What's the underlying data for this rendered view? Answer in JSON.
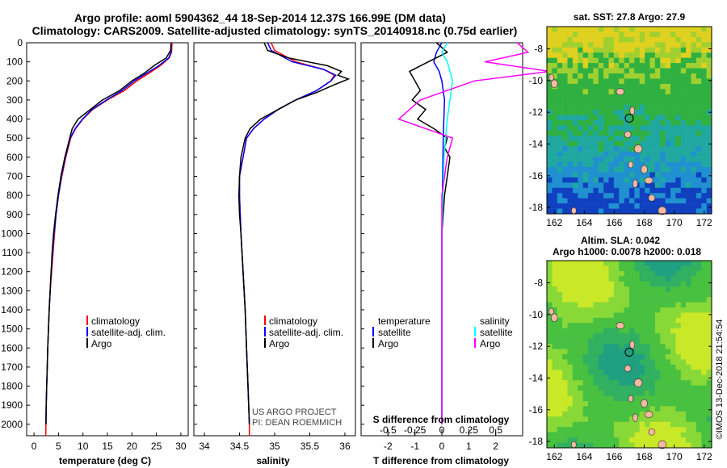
{
  "header": {
    "title_line1": "Argo profile: aoml 5904362_44 18-Sep-2014 12.37S 166.99E (DM data)",
    "title_line2": "Climatology: CARS2009. Satellite-adjusted climatology: synTS_20140918.nc (0.75d earlier)"
  },
  "colors": {
    "climatology": "#ff0000",
    "satellite": "#0000ff",
    "argo": "#000000",
    "satellite_salinity": "#00ffff",
    "argo_salinity": "#ff00ff",
    "land": "#f5b8a0"
  },
  "depth_axis": {
    "ticks": [
      "0",
      "100",
      "200",
      "300",
      "400",
      "500",
      "600",
      "700",
      "800",
      "900",
      "1000",
      "1100",
      "1200",
      "1300",
      "1400",
      "1500",
      "1600",
      "1700",
      "1800",
      "1900",
      "2000"
    ],
    "min": 0,
    "max": 2060
  },
  "chart_data": [
    {
      "type": "line",
      "xlabel": "temperature (deg C)",
      "xlim": [
        -1.5,
        31.5
      ],
      "xticks": [
        "0",
        "5",
        "10",
        "15",
        "20",
        "25",
        "30"
      ],
      "xtick_values": [
        0,
        5,
        10,
        15,
        20,
        25,
        30
      ],
      "legend": [
        "climatology",
        "satellite-adj. clim.",
        "Argo"
      ],
      "series": [
        {
          "name": "climatology",
          "color": "climatology",
          "points": [
            [
              28.2,
              0
            ],
            [
              28.1,
              50
            ],
            [
              27.6,
              80
            ],
            [
              25.8,
              120
            ],
            [
              23.5,
              160
            ],
            [
              21.0,
              200
            ],
            [
              18.5,
              250
            ],
            [
              15.0,
              300
            ],
            [
              12.0,
              350
            ],
            [
              10.0,
              400
            ],
            [
              8.5,
              450
            ],
            [
              7.5,
              500
            ],
            [
              6.5,
              600
            ],
            [
              5.7,
              700
            ],
            [
              5.0,
              800
            ],
            [
              4.5,
              900
            ],
            [
              4.2,
              1000
            ],
            [
              3.9,
              1100
            ],
            [
              3.6,
              1200
            ],
            [
              3.3,
              1300
            ],
            [
              3.1,
              1400
            ],
            [
              2.95,
              1500
            ],
            [
              2.8,
              1600
            ],
            [
              2.7,
              1700
            ],
            [
              2.6,
              1800
            ],
            [
              2.5,
              1900
            ],
            [
              2.45,
              2000
            ],
            [
              2.4,
              2060
            ]
          ]
        },
        {
          "name": "satellite-adj. clim.",
          "color": "satellite",
          "points": [
            [
              28.0,
              0
            ],
            [
              28.0,
              50
            ],
            [
              27.5,
              80
            ],
            [
              25.5,
              120
            ],
            [
              23.0,
              160
            ],
            [
              20.5,
              200
            ],
            [
              18.0,
              250
            ],
            [
              14.8,
              300
            ],
            [
              11.8,
              350
            ],
            [
              9.9,
              400
            ],
            [
              8.4,
              450
            ],
            [
              7.4,
              500
            ],
            [
              6.4,
              600
            ],
            [
              5.6,
              700
            ],
            [
              5.0,
              800
            ],
            [
              4.5,
              900
            ],
            [
              4.1,
              1000
            ],
            [
              3.8,
              1100
            ],
            [
              3.5,
              1200
            ],
            [
              3.3,
              1300
            ],
            [
              3.1,
              1400
            ],
            [
              2.95,
              1500
            ],
            [
              2.8,
              1600
            ],
            [
              2.7,
              1700
            ],
            [
              2.6,
              1800
            ],
            [
              2.5,
              1900
            ],
            [
              2.45,
              2000
            ]
          ]
        },
        {
          "name": "Argo",
          "color": "argo",
          "points": [
            [
              28.0,
              0
            ],
            [
              27.9,
              40
            ],
            [
              27.0,
              80
            ],
            [
              24.5,
              120
            ],
            [
              22.5,
              160
            ],
            [
              20.0,
              200
            ],
            [
              17.5,
              250
            ],
            [
              14.0,
              300
            ],
            [
              11.5,
              350
            ],
            [
              9.0,
              400
            ],
            [
              7.8,
              450
            ],
            [
              7.3,
              500
            ],
            [
              6.3,
              600
            ],
            [
              5.5,
              700
            ],
            [
              4.9,
              800
            ],
            [
              4.4,
              900
            ],
            [
              4.0,
              1000
            ],
            [
              3.7,
              1100
            ],
            [
              3.5,
              1200
            ],
            [
              3.3,
              1300
            ],
            [
              3.1,
              1400
            ],
            [
              2.95,
              1500
            ],
            [
              2.8,
              1600
            ],
            [
              2.7,
              1700
            ],
            [
              2.6,
              1800
            ],
            [
              2.5,
              1900
            ],
            [
              2.45,
              2000
            ]
          ]
        }
      ]
    },
    {
      "type": "line",
      "xlabel": "salinity",
      "xlim": [
        33.85,
        36.15
      ],
      "xticks": [
        "34",
        "34.5",
        "35",
        "35.5",
        "36"
      ],
      "xtick_values": [
        34,
        34.5,
        35,
        35.5,
        36
      ],
      "legend": [
        "climatology",
        "satellite-adj. clim.",
        "Argo"
      ],
      "series": [
        {
          "name": "climatology",
          "color": "climatology",
          "points": [
            [
              34.95,
              0
            ],
            [
              35.0,
              40
            ],
            [
              35.3,
              100
            ],
            [
              35.7,
              140
            ],
            [
              35.85,
              170
            ],
            [
              35.8,
              200
            ],
            [
              35.6,
              250
            ],
            [
              35.3,
              300
            ],
            [
              35.05,
              350
            ],
            [
              34.85,
              400
            ],
            [
              34.7,
              450
            ],
            [
              34.6,
              500
            ],
            [
              34.55,
              600
            ],
            [
              34.5,
              700
            ],
            [
              34.5,
              800
            ],
            [
              34.52,
              1000
            ],
            [
              34.55,
              1200
            ],
            [
              34.58,
              1400
            ],
            [
              34.6,
              1600
            ],
            [
              34.62,
              1800
            ],
            [
              34.64,
              2000
            ],
            [
              34.64,
              2060
            ]
          ]
        },
        {
          "name": "satellite-adj. clim.",
          "color": "satellite",
          "points": [
            [
              34.9,
              0
            ],
            [
              34.95,
              40
            ],
            [
              35.25,
              100
            ],
            [
              35.7,
              140
            ],
            [
              35.87,
              170
            ],
            [
              35.8,
              200
            ],
            [
              35.6,
              250
            ],
            [
              35.3,
              300
            ],
            [
              35.05,
              350
            ],
            [
              34.85,
              400
            ],
            [
              34.7,
              450
            ],
            [
              34.6,
              500
            ],
            [
              34.55,
              600
            ],
            [
              34.5,
              700
            ],
            [
              34.5,
              800
            ],
            [
              34.52,
              1000
            ],
            [
              34.55,
              1200
            ],
            [
              34.58,
              1400
            ],
            [
              34.6,
              1600
            ],
            [
              34.62,
              1800
            ],
            [
              34.64,
              2000
            ]
          ]
        },
        {
          "name": "Argo",
          "color": "argo",
          "points": [
            [
              34.85,
              0
            ],
            [
              34.9,
              40
            ],
            [
              35.2,
              80
            ],
            [
              35.75,
              120
            ],
            [
              35.95,
              150
            ],
            [
              35.9,
              170
            ],
            [
              36.05,
              190
            ],
            [
              35.85,
              220
            ],
            [
              35.6,
              260
            ],
            [
              35.3,
              300
            ],
            [
              35.05,
              350
            ],
            [
              34.8,
              400
            ],
            [
              34.65,
              450
            ],
            [
              34.58,
              500
            ],
            [
              34.52,
              600
            ],
            [
              34.5,
              700
            ],
            [
              34.49,
              800
            ],
            [
              34.5,
              900
            ],
            [
              34.52,
              1000
            ],
            [
              34.55,
              1200
            ],
            [
              34.58,
              1400
            ],
            [
              34.6,
              1600
            ],
            [
              34.62,
              1800
            ],
            [
              34.64,
              2000
            ]
          ]
        }
      ]
    },
    {
      "type": "line",
      "xlabel": "T difference from climatology",
      "title_inner": "S difference from climatology",
      "xlim": [
        -3,
        3
      ],
      "xticks": [
        "-2",
        "-1",
        "0",
        "1",
        "2"
      ],
      "xtick_values": [
        -2,
        -1,
        0,
        1,
        2
      ],
      "s_xticks": [
        "-0.5",
        "-0.25",
        "0",
        "0.25",
        "0.5"
      ],
      "s_xtick_values": [
        -0.5,
        -0.25,
        0,
        0.25,
        0.5
      ],
      "legend_temperature_title": "temperature",
      "legend_salinity_title": "salinity",
      "legend_temperature": [
        "satellite",
        "Argo"
      ],
      "legend_salinity": [
        "satellite",
        "Argo"
      ],
      "series": [
        {
          "name": "temperature satellite",
          "color": "satellite",
          "points": [
            [
              0,
              0
            ],
            [
              -0.2,
              50
            ],
            [
              -0.3,
              100
            ],
            [
              -0.1,
              150
            ],
            [
              0,
              200
            ],
            [
              0.1,
              300
            ],
            [
              0.05,
              500
            ],
            [
              0,
              1000
            ],
            [
              0,
              2000
            ]
          ]
        },
        {
          "name": "temperature Argo",
          "color": "argo",
          "points": [
            [
              -0.2,
              0
            ],
            [
              0.2,
              50
            ],
            [
              -0.5,
              100
            ],
            [
              -1.2,
              150
            ],
            [
              -1.0,
              200
            ],
            [
              -0.8,
              250
            ],
            [
              -1.1,
              300
            ],
            [
              -0.6,
              350
            ],
            [
              -0.9,
              400
            ],
            [
              -0.3,
              450
            ],
            [
              0.2,
              500
            ],
            [
              0.1,
              550
            ],
            [
              0.3,
              600
            ],
            [
              0.2,
              700
            ],
            [
              0.1,
              800
            ],
            [
              0.05,
              900
            ],
            [
              0,
              1000
            ],
            [
              0,
              1500
            ],
            [
              0,
              2000
            ]
          ]
        },
        {
          "name": "salinity satellite",
          "color": "satellite_salinity",
          "points": [
            [
              0.05,
              0
            ],
            [
              0.0,
              50
            ],
            [
              0.05,
              100
            ],
            [
              0.1,
              200
            ],
            [
              0.05,
              400
            ],
            [
              0.02,
              600
            ],
            [
              0,
              1000
            ],
            [
              0,
              2000
            ]
          ]
        },
        {
          "name": "salinity Argo",
          "color": "argo_salinity",
          "points": [
            [
              0.7,
              0
            ],
            [
              0.8,
              50
            ],
            [
              0.4,
              100
            ],
            [
              1.0,
              150
            ],
            [
              0.3,
              200
            ],
            [
              -0.2,
              300
            ],
            [
              -0.4,
              400
            ],
            [
              0.1,
              500
            ],
            [
              0.05,
              600
            ],
            [
              0,
              800
            ],
            [
              0,
              1000
            ],
            [
              0,
              2000
            ]
          ]
        }
      ]
    }
  ],
  "credits": {
    "project": "US ARGO PROJECT",
    "pi": "PI: DEAN ROEMMICH"
  },
  "maps": {
    "sst": {
      "title": "sat. SST: 27.8 Argo: 27.9",
      "yticks": [
        "-8",
        "-10",
        "-12",
        "-14",
        "-16",
        "-18"
      ],
      "ytick_values": [
        -8,
        -10,
        -12,
        -14,
        -16,
        -18
      ],
      "xticks": [
        "162",
        "164",
        "166",
        "168",
        "170",
        "172"
      ],
      "xtick_values": [
        162,
        164,
        166,
        168,
        170,
        172
      ]
    },
    "sla": {
      "title_line1": "Altim. SLA: 0.042",
      "title_line2": "Argo h1000: 0.0078 h2000: 0.018",
      "yticks": [
        "-8",
        "-10",
        "-12",
        "-14",
        "-16",
        "-18"
      ],
      "ytick_values": [
        -8,
        -10,
        -12,
        -14,
        -16,
        -18
      ],
      "xticks": [
        "162",
        "164",
        "166",
        "168",
        "170",
        "172"
      ],
      "xtick_values": [
        162,
        164,
        166,
        168,
        170,
        172
      ]
    },
    "float_lon": 167.0,
    "float_lat": -12.37,
    "lon_range": [
      161.5,
      172.5
    ],
    "lat_range": [
      -18.4,
      -6.6
    ]
  },
  "timestamp": "©IMOS 13-Dec-2018 21:54:54"
}
